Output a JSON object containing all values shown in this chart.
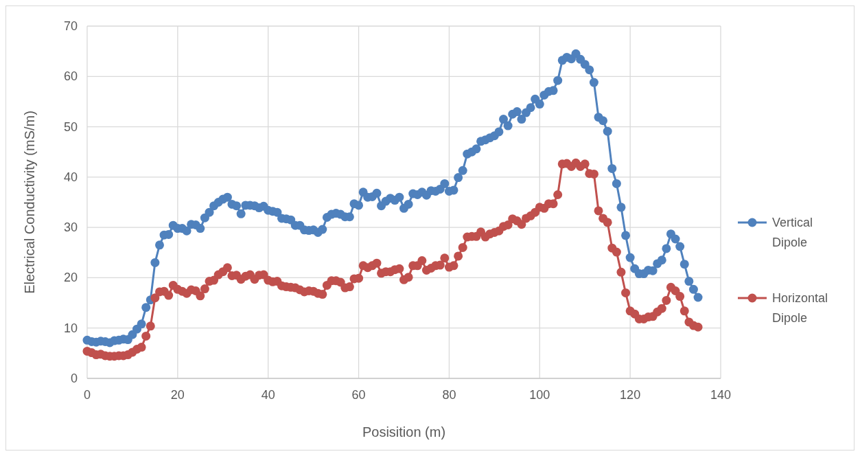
{
  "chart_data": {
    "type": "line",
    "xlabel": "Posisition (m)",
    "ylabel": "Electrical Conductivity (mS/m)",
    "x": [
      0,
      1,
      2,
      3,
      4,
      5,
      6,
      7,
      8,
      9,
      10,
      11,
      12,
      13,
      14,
      15,
      16,
      17,
      18,
      19,
      20,
      21,
      22,
      23,
      24,
      25,
      26,
      27,
      28,
      29,
      30,
      31,
      32,
      33,
      34,
      35,
      36,
      37,
      38,
      39,
      40,
      41,
      42,
      43,
      44,
      45,
      46,
      47,
      48,
      49,
      50,
      51,
      52,
      53,
      54,
      55,
      56,
      57,
      58,
      59,
      60,
      61,
      62,
      63,
      64,
      65,
      66,
      67,
      68,
      69,
      70,
      71,
      72,
      73,
      74,
      75,
      76,
      77,
      78,
      79,
      80,
      81,
      82,
      83,
      84,
      85,
      86,
      87,
      88,
      89,
      90,
      91,
      92,
      93,
      94,
      95,
      96,
      97,
      98,
      99,
      100,
      101,
      102,
      103,
      104,
      105,
      106,
      107,
      108,
      109,
      110,
      111,
      112,
      113,
      114,
      115,
      116,
      117,
      118,
      119,
      120,
      121,
      122,
      123,
      124,
      125,
      126,
      127,
      128,
      129,
      130,
      131,
      132,
      133,
      134,
      135
    ],
    "series": [
      {
        "name": "Vertical Dipole",
        "color": "#4f81bd",
        "values": [
          7.6,
          7.3,
          7.2,
          7.4,
          7.3,
          7.1,
          7.5,
          7.6,
          7.8,
          7.7,
          8.7,
          9.8,
          10.8,
          14.1,
          15.6,
          23.0,
          26.5,
          28.5,
          28.6,
          30.4,
          29.8,
          29.8,
          29.3,
          30.6,
          30.5,
          29.8,
          31.9,
          33.0,
          34.3,
          35.0,
          35.6,
          36.0,
          34.6,
          34.3,
          32.7,
          34.4,
          34.4,
          34.3,
          33.9,
          34.2,
          33.4,
          33.2,
          33.0,
          31.8,
          31.7,
          31.5,
          30.4,
          30.4,
          29.5,
          29.4,
          29.5,
          29.0,
          29.6,
          32.0,
          32.6,
          32.8,
          32.6,
          32.1,
          32.1,
          34.7,
          34.4,
          37.0,
          36.0,
          36.1,
          36.8,
          34.3,
          35.2,
          35.8,
          35.4,
          36.0,
          33.8,
          34.6,
          36.7,
          36.5,
          37.0,
          36.4,
          37.3,
          37.2,
          37.6,
          38.7,
          37.2,
          37.4,
          39.9,
          41.3,
          44.6,
          45.0,
          45.6,
          47.1,
          47.4,
          47.8,
          48.2,
          49.0,
          51.5,
          50.2,
          52.5,
          53.0,
          51.5,
          52.8,
          53.8,
          55.5,
          54.5,
          56.3,
          57.0,
          57.2,
          59.2,
          63.2,
          63.8,
          63.5,
          64.5,
          63.4,
          62.4,
          61.3,
          58.8,
          51.9,
          51.2,
          49.1,
          41.7,
          38.7,
          34.0,
          28.4,
          24.0,
          21.8,
          20.8,
          20.8,
          21.5,
          21.4,
          22.8,
          23.5,
          25.8,
          28.7,
          27.7,
          26.2,
          22.7,
          19.3,
          17.7,
          16.1
        ]
      },
      {
        "name": "Horizontal Dipole",
        "color": "#c0504d",
        "values": [
          5.4,
          5.1,
          4.7,
          4.8,
          4.5,
          4.4,
          4.4,
          4.5,
          4.5,
          4.7,
          5.2,
          5.8,
          6.2,
          8.4,
          10.4,
          16.0,
          17.2,
          17.3,
          16.5,
          18.5,
          17.7,
          17.3,
          16.9,
          17.6,
          17.4,
          16.4,
          17.8,
          19.3,
          19.5,
          20.6,
          21.2,
          22.0,
          20.4,
          20.5,
          19.7,
          20.3,
          20.6,
          19.7,
          20.5,
          20.6,
          19.5,
          19.2,
          19.3,
          18.4,
          18.2,
          18.1,
          18.0,
          17.6,
          17.2,
          17.4,
          17.3,
          16.9,
          16.7,
          18.5,
          19.4,
          19.4,
          19.1,
          18.0,
          18.2,
          19.8,
          19.9,
          22.4,
          22.0,
          22.4,
          22.9,
          20.9,
          21.2,
          21.2,
          21.6,
          21.8,
          19.6,
          20.1,
          22.4,
          22.4,
          23.4,
          21.5,
          21.9,
          22.4,
          22.5,
          23.9,
          22.1,
          22.4,
          24.3,
          26.0,
          28.1,
          28.2,
          28.2,
          29.1,
          28.1,
          28.7,
          29.0,
          29.3,
          30.2,
          30.5,
          31.7,
          31.3,
          30.6,
          31.8,
          32.3,
          33.0,
          34.0,
          33.8,
          34.7,
          34.7,
          36.5,
          42.6,
          42.7,
          42.1,
          42.8,
          42.1,
          42.6,
          40.7,
          40.6,
          33.3,
          31.8,
          31.0,
          25.9,
          25.1,
          21.1,
          17.0,
          13.4,
          12.8,
          11.8,
          11.8,
          12.2,
          12.3,
          13.2,
          13.9,
          15.5,
          18.1,
          17.4,
          16.3,
          13.4,
          11.2,
          10.5,
          10.2
        ]
      }
    ],
    "xlim": [
      0,
      140
    ],
    "xticks": [
      0,
      20,
      40,
      60,
      80,
      100,
      120,
      140
    ],
    "ylim": [
      0,
      70
    ],
    "yticks": [
      0,
      10,
      20,
      30,
      40,
      50,
      60,
      70
    ],
    "grid": true,
    "legend": "right",
    "marker": "circle",
    "line_style": "solid"
  }
}
